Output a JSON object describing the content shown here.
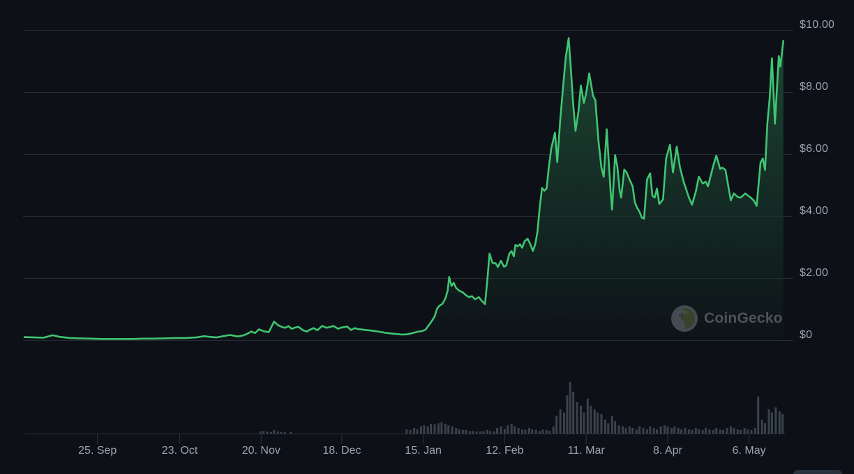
{
  "watermark": {
    "label": "CoinGecko",
    "icon": "coingecko-gecko-logo"
  },
  "chart_data": {
    "type": "line",
    "description": "Cryptocurrency price over ~8 months with volume bars",
    "legend": "none",
    "grid": "horizontal",
    "ylim": [
      0,
      10.1
    ],
    "colors": {
      "background": "#0d1117",
      "line": "#40c572",
      "area_fill": "#41c573",
      "volume_bar": "#39424d",
      "grid_line": "#232b34",
      "axis_line": "#2a323c",
      "label_text": "#9aa4b1",
      "watermark_text": "#575e66"
    },
    "y_ticks": [
      {
        "label": "$10.00",
        "value": 10
      },
      {
        "label": "$8.00",
        "value": 8
      },
      {
        "label": "$6.00",
        "value": 6
      },
      {
        "label": "$4.00",
        "value": 4
      },
      {
        "label": "$2.00",
        "value": 2
      },
      {
        "label": "$0",
        "value": 0
      }
    ],
    "x_ticks": [
      {
        "label": "25. Sep",
        "pos": 0.096
      },
      {
        "label": "23. Oct",
        "pos": 0.204
      },
      {
        "label": "20. Nov",
        "pos": 0.311
      },
      {
        "label": "18. Dec",
        "pos": 0.417
      },
      {
        "label": "15. Jan",
        "pos": 0.524
      },
      {
        "label": "12. Feb",
        "pos": 0.631
      },
      {
        "label": "11. Mar",
        "pos": 0.738
      },
      {
        "label": "8. Apr",
        "pos": 0.845
      },
      {
        "label": "6. May",
        "pos": 0.952
      }
    ],
    "series": [
      {
        "name": "price_usd",
        "points": [
          [
            0.0,
            0.11
          ],
          [
            0.014,
            0.1
          ],
          [
            0.025,
            0.09
          ],
          [
            0.037,
            0.17
          ],
          [
            0.046,
            0.12
          ],
          [
            0.06,
            0.08
          ],
          [
            0.073,
            0.07
          ],
          [
            0.087,
            0.06
          ],
          [
            0.101,
            0.05
          ],
          [
            0.115,
            0.05
          ],
          [
            0.128,
            0.05
          ],
          [
            0.142,
            0.05
          ],
          [
            0.156,
            0.06
          ],
          [
            0.17,
            0.06
          ],
          [
            0.183,
            0.07
          ],
          [
            0.197,
            0.08
          ],
          [
            0.211,
            0.08
          ],
          [
            0.225,
            0.1
          ],
          [
            0.236,
            0.14
          ],
          [
            0.243,
            0.12
          ],
          [
            0.252,
            0.1
          ],
          [
            0.261,
            0.14
          ],
          [
            0.27,
            0.18
          ],
          [
            0.28,
            0.13
          ],
          [
            0.287,
            0.16
          ],
          [
            0.293,
            0.22
          ],
          [
            0.298,
            0.29
          ],
          [
            0.303,
            0.24
          ],
          [
            0.308,
            0.36
          ],
          [
            0.314,
            0.3
          ],
          [
            0.321,
            0.27
          ],
          [
            0.328,
            0.61
          ],
          [
            0.333,
            0.5
          ],
          [
            0.337,
            0.45
          ],
          [
            0.342,
            0.41
          ],
          [
            0.347,
            0.46
          ],
          [
            0.351,
            0.38
          ],
          [
            0.356,
            0.42
          ],
          [
            0.36,
            0.44
          ],
          [
            0.366,
            0.33
          ],
          [
            0.371,
            0.29
          ],
          [
            0.376,
            0.36
          ],
          [
            0.38,
            0.4
          ],
          [
            0.385,
            0.33
          ],
          [
            0.391,
            0.47
          ],
          [
            0.397,
            0.41
          ],
          [
            0.402,
            0.44
          ],
          [
            0.406,
            0.47
          ],
          [
            0.412,
            0.38
          ],
          [
            0.417,
            0.42
          ],
          [
            0.424,
            0.45
          ],
          [
            0.429,
            0.34
          ],
          [
            0.434,
            0.4
          ],
          [
            0.438,
            0.37
          ],
          [
            0.445,
            0.35
          ],
          [
            0.452,
            0.33
          ],
          [
            0.459,
            0.31
          ],
          [
            0.467,
            0.28
          ],
          [
            0.474,
            0.25
          ],
          [
            0.481,
            0.23
          ],
          [
            0.489,
            0.21
          ],
          [
            0.496,
            0.19
          ],
          [
            0.503,
            0.2
          ],
          [
            0.51,
            0.24
          ],
          [
            0.516,
            0.28
          ],
          [
            0.522,
            0.3
          ],
          [
            0.527,
            0.35
          ],
          [
            0.532,
            0.52
          ],
          [
            0.535,
            0.62
          ],
          [
            0.539,
            0.78
          ],
          [
            0.542,
            1.02
          ],
          [
            0.545,
            1.12
          ],
          [
            0.549,
            1.18
          ],
          [
            0.553,
            1.35
          ],
          [
            0.556,
            1.6
          ],
          [
            0.558,
            2.05
          ],
          [
            0.561,
            1.76
          ],
          [
            0.564,
            1.86
          ],
          [
            0.567,
            1.7
          ],
          [
            0.571,
            1.61
          ],
          [
            0.576,
            1.55
          ],
          [
            0.58,
            1.46
          ],
          [
            0.584,
            1.4
          ],
          [
            0.588,
            1.43
          ],
          [
            0.592,
            1.33
          ],
          [
            0.597,
            1.4
          ],
          [
            0.6,
            1.3
          ],
          [
            0.605,
            1.17
          ],
          [
            0.608,
            1.9
          ],
          [
            0.611,
            2.8
          ],
          [
            0.615,
            2.5
          ],
          [
            0.619,
            2.49
          ],
          [
            0.622,
            2.37
          ],
          [
            0.626,
            2.57
          ],
          [
            0.63,
            2.38
          ],
          [
            0.633,
            2.42
          ],
          [
            0.637,
            2.8
          ],
          [
            0.64,
            2.88
          ],
          [
            0.643,
            2.71
          ],
          [
            0.645,
            3.08
          ],
          [
            0.648,
            3.04
          ],
          [
            0.651,
            3.1
          ],
          [
            0.654,
            2.99
          ],
          [
            0.657,
            3.2
          ],
          [
            0.661,
            3.28
          ],
          [
            0.664,
            3.14
          ],
          [
            0.668,
            2.89
          ],
          [
            0.671,
            3.1
          ],
          [
            0.674,
            3.5
          ],
          [
            0.677,
            4.3
          ],
          [
            0.68,
            4.92
          ],
          [
            0.683,
            4.83
          ],
          [
            0.686,
            4.9
          ],
          [
            0.689,
            5.6
          ],
          [
            0.692,
            6.18
          ],
          [
            0.697,
            6.7
          ],
          [
            0.7,
            5.75
          ],
          [
            0.704,
            7.15
          ],
          [
            0.708,
            8.27
          ],
          [
            0.711,
            9.1
          ],
          [
            0.715,
            9.75
          ],
          [
            0.718,
            8.72
          ],
          [
            0.721,
            7.6
          ],
          [
            0.724,
            6.76
          ],
          [
            0.728,
            7.4
          ],
          [
            0.731,
            8.22
          ],
          [
            0.735,
            7.66
          ],
          [
            0.738,
            7.98
          ],
          [
            0.742,
            8.61
          ],
          [
            0.747,
            7.89
          ],
          [
            0.75,
            7.75
          ],
          [
            0.754,
            6.47
          ],
          [
            0.758,
            5.57
          ],
          [
            0.761,
            5.28
          ],
          [
            0.765,
            6.81
          ],
          [
            0.77,
            4.83
          ],
          [
            0.772,
            4.22
          ],
          [
            0.776,
            5.98
          ],
          [
            0.779,
            5.6
          ],
          [
            0.782,
            4.83
          ],
          [
            0.784,
            4.61
          ],
          [
            0.788,
            5.51
          ],
          [
            0.791,
            5.42
          ],
          [
            0.795,
            5.19
          ],
          [
            0.797,
            5.08
          ],
          [
            0.799,
            4.97
          ],
          [
            0.802,
            4.45
          ],
          [
            0.805,
            4.27
          ],
          [
            0.808,
            4.16
          ],
          [
            0.811,
            3.96
          ],
          [
            0.814,
            3.93
          ],
          [
            0.818,
            5.19
          ],
          [
            0.822,
            5.39
          ],
          [
            0.825,
            4.67
          ],
          [
            0.828,
            4.61
          ],
          [
            0.831,
            4.9
          ],
          [
            0.834,
            4.4
          ],
          [
            0.839,
            4.55
          ],
          [
            0.843,
            5.87
          ],
          [
            0.848,
            6.31
          ],
          [
            0.852,
            5.42
          ],
          [
            0.857,
            6.25
          ],
          [
            0.861,
            5.6
          ],
          [
            0.866,
            5.12
          ],
          [
            0.873,
            4.61
          ],
          [
            0.877,
            4.38
          ],
          [
            0.882,
            4.8
          ],
          [
            0.886,
            5.28
          ],
          [
            0.891,
            5.06
          ],
          [
            0.895,
            5.12
          ],
          [
            0.898,
            4.97
          ],
          [
            0.905,
            5.64
          ],
          [
            0.909,
            5.96
          ],
          [
            0.914,
            5.53
          ],
          [
            0.917,
            5.57
          ],
          [
            0.921,
            5.5
          ],
          [
            0.928,
            4.52
          ],
          [
            0.932,
            4.74
          ],
          [
            0.937,
            4.63
          ],
          [
            0.941,
            4.61
          ],
          [
            0.947,
            4.74
          ],
          [
            0.953,
            4.63
          ],
          [
            0.958,
            4.52
          ],
          [
            0.962,
            4.34
          ],
          [
            0.967,
            5.73
          ],
          [
            0.97,
            5.87
          ],
          [
            0.973,
            5.5
          ],
          [
            0.976,
            6.99
          ],
          [
            0.979,
            7.8
          ],
          [
            0.982,
            9.1
          ],
          [
            0.986,
            6.99
          ],
          [
            0.991,
            9.17
          ],
          [
            0.993,
            8.83
          ],
          [
            0.997,
            9.66
          ]
        ]
      }
    ],
    "volume_relative": [
      [
        0.31,
        0.04
      ],
      [
        0.314,
        0.05
      ],
      [
        0.319,
        0.04
      ],
      [
        0.324,
        0.03
      ],
      [
        0.328,
        0.07
      ],
      [
        0.333,
        0.04
      ],
      [
        0.337,
        0.03
      ],
      [
        0.342,
        0.03
      ],
      [
        0.35,
        0.03
      ],
      [
        0.502,
        0.08
      ],
      [
        0.507,
        0.07
      ],
      [
        0.512,
        0.11
      ],
      [
        0.516,
        0.08
      ],
      [
        0.521,
        0.14
      ],
      [
        0.525,
        0.16
      ],
      [
        0.53,
        0.14
      ],
      [
        0.534,
        0.19
      ],
      [
        0.539,
        0.18
      ],
      [
        0.544,
        0.2
      ],
      [
        0.548,
        0.22
      ],
      [
        0.553,
        0.19
      ],
      [
        0.557,
        0.16
      ],
      [
        0.562,
        0.14
      ],
      [
        0.567,
        0.11
      ],
      [
        0.571,
        0.08
      ],
      [
        0.576,
        0.07
      ],
      [
        0.58,
        0.07
      ],
      [
        0.585,
        0.05
      ],
      [
        0.589,
        0.05
      ],
      [
        0.594,
        0.04
      ],
      [
        0.599,
        0.04
      ],
      [
        0.603,
        0.05
      ],
      [
        0.608,
        0.07
      ],
      [
        0.612,
        0.05
      ],
      [
        0.617,
        0.04
      ],
      [
        0.621,
        0.11
      ],
      [
        0.626,
        0.14
      ],
      [
        0.631,
        0.09
      ],
      [
        0.635,
        0.16
      ],
      [
        0.64,
        0.19
      ],
      [
        0.644,
        0.14
      ],
      [
        0.649,
        0.11
      ],
      [
        0.654,
        0.08
      ],
      [
        0.658,
        0.07
      ],
      [
        0.663,
        0.11
      ],
      [
        0.667,
        0.08
      ],
      [
        0.672,
        0.07
      ],
      [
        0.677,
        0.05
      ],
      [
        0.681,
        0.08
      ],
      [
        0.686,
        0.07
      ],
      [
        0.69,
        0.05
      ],
      [
        0.695,
        0.14
      ],
      [
        0.699,
        0.34
      ],
      [
        0.704,
        0.47
      ],
      [
        0.709,
        0.41
      ],
      [
        0.713,
        0.74
      ],
      [
        0.717,
        1.0
      ],
      [
        0.721,
        0.81
      ],
      [
        0.726,
        0.61
      ],
      [
        0.731,
        0.54
      ],
      [
        0.735,
        0.41
      ],
      [
        0.74,
        0.68
      ],
      [
        0.744,
        0.54
      ],
      [
        0.749,
        0.47
      ],
      [
        0.753,
        0.41
      ],
      [
        0.758,
        0.38
      ],
      [
        0.763,
        0.27
      ],
      [
        0.767,
        0.2
      ],
      [
        0.772,
        0.34
      ],
      [
        0.776,
        0.24
      ],
      [
        0.781,
        0.16
      ],
      [
        0.786,
        0.14
      ],
      [
        0.79,
        0.11
      ],
      [
        0.795,
        0.14
      ],
      [
        0.799,
        0.11
      ],
      [
        0.804,
        0.08
      ],
      [
        0.808,
        0.14
      ],
      [
        0.813,
        0.11
      ],
      [
        0.818,
        0.08
      ],
      [
        0.822,
        0.14
      ],
      [
        0.827,
        0.11
      ],
      [
        0.831,
        0.08
      ],
      [
        0.836,
        0.14
      ],
      [
        0.841,
        0.16
      ],
      [
        0.845,
        0.14
      ],
      [
        0.85,
        0.11
      ],
      [
        0.854,
        0.14
      ],
      [
        0.859,
        0.11
      ],
      [
        0.863,
        0.08
      ],
      [
        0.868,
        0.11
      ],
      [
        0.873,
        0.08
      ],
      [
        0.877,
        0.07
      ],
      [
        0.882,
        0.11
      ],
      [
        0.886,
        0.08
      ],
      [
        0.891,
        0.07
      ],
      [
        0.895,
        0.11
      ],
      [
        0.9,
        0.08
      ],
      [
        0.905,
        0.07
      ],
      [
        0.909,
        0.11
      ],
      [
        0.914,
        0.08
      ],
      [
        0.918,
        0.07
      ],
      [
        0.923,
        0.11
      ],
      [
        0.928,
        0.14
      ],
      [
        0.932,
        0.11
      ],
      [
        0.937,
        0.08
      ],
      [
        0.941,
        0.07
      ],
      [
        0.946,
        0.11
      ],
      [
        0.95,
        0.08
      ],
      [
        0.955,
        0.07
      ],
      [
        0.96,
        0.11
      ],
      [
        0.964,
        0.72
      ],
      [
        0.969,
        0.27
      ],
      [
        0.973,
        0.2
      ],
      [
        0.978,
        0.47
      ],
      [
        0.982,
        0.41
      ],
      [
        0.987,
        0.51
      ],
      [
        0.992,
        0.43
      ],
      [
        0.996,
        0.38
      ]
    ]
  }
}
